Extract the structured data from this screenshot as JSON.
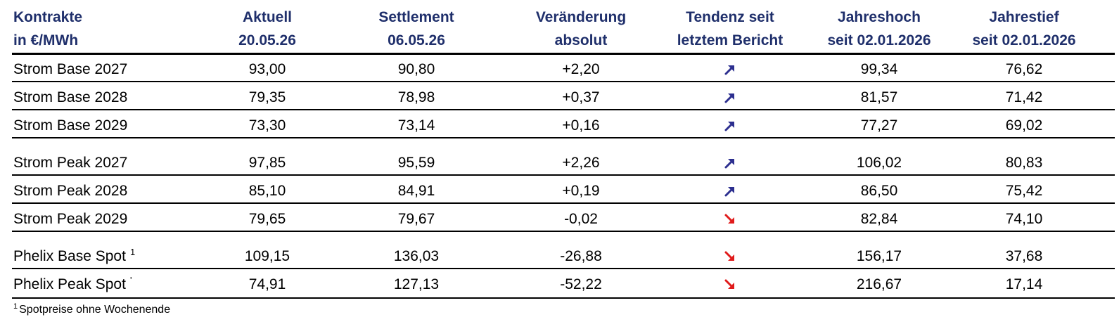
{
  "header": {
    "contracts": [
      "Kontrakte",
      "in €/MWh"
    ],
    "current": [
      "Aktuell",
      "20.05.26"
    ],
    "settlement": [
      "Settlement",
      "06.05.26"
    ],
    "change": [
      "Veränderung",
      "absolut"
    ],
    "trend": [
      "Tendenz seit",
      "letztem Bericht"
    ],
    "year_high": [
      "Jahreshoch",
      "seit 02.01.2026"
    ],
    "year_low": [
      "Jahrestief",
      "seit 02.01.2026"
    ]
  },
  "rows": [
    {
      "name": "Strom Base 2027",
      "sup": "",
      "current": "93,00",
      "settlement": "90,80",
      "change": "+2,20",
      "trend": "up",
      "high": "99,34",
      "low": "76,62"
    },
    {
      "name": "Strom Base 2028",
      "sup": "",
      "current": "79,35",
      "settlement": "78,98",
      "change": "+0,37",
      "trend": "up",
      "high": "81,57",
      "low": "71,42"
    },
    {
      "name": "Strom Base 2029",
      "sup": "",
      "current": "73,30",
      "settlement": "73,14",
      "change": "+0,16",
      "trend": "up",
      "high": "77,27",
      "low": "69,02"
    },
    {
      "name": "Strom Peak 2027",
      "sup": "",
      "current": "97,85",
      "settlement": "95,59",
      "change": "+2,26",
      "trend": "up",
      "high": "106,02",
      "low": "80,83"
    },
    {
      "name": "Strom Peak 2028",
      "sup": "",
      "current": "85,10",
      "settlement": "84,91",
      "change": "+0,19",
      "trend": "up",
      "high": "86,50",
      "low": "75,42"
    },
    {
      "name": "Strom Peak 2029",
      "sup": "",
      "current": "79,65",
      "settlement": "79,67",
      "change": "-0,02",
      "trend": "down",
      "high": "82,84",
      "low": "74,10"
    },
    {
      "name": "Phelix Base Spot",
      "sup": "1",
      "current": "109,15",
      "settlement": "136,03",
      "change": "-26,88",
      "trend": "down",
      "high": "156,17",
      "low": "37,68"
    },
    {
      "name": "Phelix Peak Spot",
      "sup": "'",
      "current": "74,91",
      "settlement": "127,13",
      "change": "-52,22",
      "trend": "down",
      "high": "216,67",
      "low": "17,14"
    }
  ],
  "colors": {
    "header_text": "#1f2f6b",
    "trend_up": "#2c2f8f",
    "trend_down": "#e01b1b"
  },
  "icons": {
    "up": "arrow-up-right-icon",
    "down": "arrow-down-right-icon"
  },
  "footnote": {
    "marker": "1",
    "text": "Spotpreise ohne Wochenende"
  }
}
